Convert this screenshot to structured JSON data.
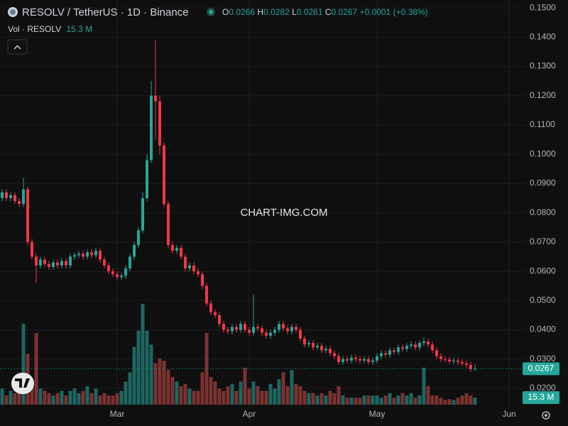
{
  "chart_data": {
    "type": "candlestick",
    "title": "RESOLV / TetherUS · 1D · Binance",
    "change_label": "+0.0001 (+0.38%)",
    "watermark": "CHART-IMG.COM",
    "ohlc_letters": [
      "O",
      "H",
      "L",
      "C"
    ],
    "up_color": "#26a69a",
    "down_color": "#f23645",
    "volume_up_color": "#1d6660",
    "volume_down_color": "#7a3230",
    "grid": true,
    "ylim": [
      0.0132,
      0.1527
    ],
    "yticks": [
      {
        "value": 0.15,
        "label": "0.1500"
      },
      {
        "value": 0.14,
        "label": "0.1400"
      },
      {
        "value": 0.13,
        "label": "0.1300"
      },
      {
        "value": 0.12,
        "label": "0.1200"
      },
      {
        "value": 0.11,
        "label": "0.1100"
      },
      {
        "value": 0.1,
        "label": "0.1000"
      },
      {
        "value": 0.09,
        "label": "0.0900"
      },
      {
        "value": 0.08,
        "label": "0.0800"
      },
      {
        "value": 0.07,
        "label": "0.0700"
      },
      {
        "value": 0.06,
        "label": "0.0600"
      },
      {
        "value": 0.05,
        "label": "0.0500"
      },
      {
        "value": 0.04,
        "label": "0.0400"
      },
      {
        "value": 0.03,
        "label": "0.0300"
      },
      {
        "value": 0.02,
        "label": "0.0200"
      }
    ],
    "categories": [
      null,
      null,
      null,
      null,
      null,
      null,
      null,
      null,
      null,
      null,
      null,
      null,
      null,
      null,
      null,
      null,
      null,
      null,
      null,
      null,
      null,
      null,
      null,
      null,
      null,
      null,
      null,
      "Mar",
      null,
      null,
      null,
      null,
      null,
      null,
      null,
      null,
      null,
      null,
      null,
      null,
      null,
      null,
      null,
      null,
      null,
      null,
      null,
      null,
      null,
      null,
      null,
      null,
      null,
      null,
      null,
      null,
      null,
      null,
      "Apr",
      null,
      null,
      null,
      null,
      null,
      null,
      null,
      null,
      null,
      null,
      null,
      null,
      null,
      null,
      null,
      null,
      null,
      null,
      null,
      null,
      null,
      null,
      null,
      null,
      null,
      null,
      null,
      null,
      null,
      "May",
      null,
      null,
      null,
      null,
      null,
      null,
      null,
      null,
      null,
      null,
      null,
      null,
      null,
      null,
      null,
      null,
      null,
      null,
      null,
      null,
      null,
      null,
      null,
      null,
      null,
      null,
      null,
      null,
      null,
      null,
      "Jun"
    ],
    "open": [
      0.085,
      0.087,
      0.085,
      0.086,
      0.084,
      0.083,
      0.088,
      0.07,
      0.065,
      0.062,
      0.064,
      0.0625,
      0.0615,
      0.063,
      0.062,
      0.0635,
      0.062,
      0.065,
      0.0655,
      0.066,
      0.065,
      0.0665,
      0.0655,
      0.067,
      0.064,
      0.062,
      0.06,
      0.059,
      0.058,
      0.0585,
      0.061,
      0.065,
      0.069,
      0.074,
      0.085,
      0.098,
      0.12,
      0.118,
      0.103,
      0.083,
      0.069,
      0.067,
      0.068,
      0.065,
      0.061,
      0.062,
      0.06,
      0.059,
      0.055,
      0.049,
      0.046,
      0.045,
      0.042,
      0.04,
      0.0395,
      0.041,
      0.04,
      0.042,
      0.04,
      0.039,
      0.041,
      0.0405,
      0.039,
      0.038,
      0.039,
      0.04,
      0.042,
      0.0405,
      0.0395,
      0.041,
      0.04,
      0.037,
      0.035,
      0.0355,
      0.034,
      0.0345,
      0.033,
      0.0335,
      0.032,
      0.031,
      0.029,
      0.03,
      0.0295,
      0.0305,
      0.03,
      0.0295,
      0.03,
      0.029,
      0.0295,
      0.031,
      0.032,
      0.0315,
      0.033,
      0.0325,
      0.034,
      0.0335,
      0.0345,
      0.035,
      0.034,
      0.0355,
      0.036,
      0.035,
      0.033,
      0.031,
      0.03,
      0.0298,
      0.0292,
      0.0295,
      0.029,
      0.0285,
      0.028,
      0.0266,
      null,
      null,
      null,
      null,
      null,
      null,
      null,
      null
    ],
    "high": [
      0.088,
      0.088,
      0.087,
      0.087,
      0.085,
      0.092,
      0.089,
      0.071,
      0.066,
      0.065,
      0.065,
      0.0635,
      0.064,
      0.064,
      0.0645,
      0.0645,
      0.066,
      0.0665,
      0.067,
      0.067,
      0.0675,
      0.0675,
      0.068,
      0.068,
      0.065,
      0.063,
      0.061,
      0.06,
      0.0595,
      0.062,
      0.066,
      0.07,
      0.075,
      0.087,
      0.1,
      0.125,
      0.139,
      0.12,
      0.104,
      0.084,
      0.07,
      0.069,
      0.069,
      0.066,
      0.063,
      0.063,
      0.061,
      0.06,
      0.056,
      0.05,
      0.047,
      0.046,
      0.043,
      0.041,
      0.042,
      0.042,
      0.043,
      0.043,
      0.041,
      0.052,
      0.042,
      0.0415,
      0.04,
      0.04,
      0.041,
      0.043,
      0.043,
      0.0415,
      0.042,
      0.042,
      0.041,
      0.038,
      0.0365,
      0.0365,
      0.0355,
      0.0355,
      0.0345,
      0.0345,
      0.033,
      0.032,
      0.031,
      0.031,
      0.0315,
      0.0315,
      0.031,
      0.031,
      0.031,
      0.0305,
      0.032,
      0.033,
      0.033,
      0.034,
      0.034,
      0.035,
      0.035,
      0.0355,
      0.036,
      0.036,
      0.0365,
      0.0375,
      0.037,
      0.036,
      0.034,
      0.032,
      0.031,
      0.0308,
      0.0305,
      0.0305,
      0.03,
      0.0295,
      0.029,
      0.0282,
      null,
      null,
      null,
      null,
      null,
      null,
      null,
      null
    ],
    "low": [
      0.084,
      0.084,
      0.084,
      0.083,
      0.082,
      0.082,
      0.069,
      0.064,
      0.056,
      0.061,
      0.0615,
      0.0605,
      0.0605,
      0.061,
      0.061,
      0.061,
      0.061,
      0.064,
      0.0645,
      0.064,
      0.064,
      0.0645,
      0.0645,
      0.063,
      0.061,
      0.059,
      0.058,
      0.057,
      0.057,
      0.0575,
      0.06,
      0.064,
      0.068,
      0.073,
      0.084,
      0.097,
      0.105,
      0.1,
      0.082,
      0.068,
      0.066,
      0.066,
      0.064,
      0.06,
      0.06,
      0.059,
      0.058,
      0.054,
      0.048,
      0.045,
      0.044,
      0.041,
      0.039,
      0.0385,
      0.0385,
      0.039,
      0.039,
      0.039,
      0.038,
      0.038,
      0.0395,
      0.038,
      0.037,
      0.037,
      0.038,
      0.039,
      0.0395,
      0.0385,
      0.0385,
      0.039,
      0.036,
      0.034,
      0.034,
      0.033,
      0.033,
      0.032,
      0.032,
      0.031,
      0.03,
      0.028,
      0.028,
      0.0285,
      0.0285,
      0.029,
      0.0285,
      0.0285,
      0.028,
      0.028,
      0.0285,
      0.03,
      0.0305,
      0.0305,
      0.0315,
      0.0315,
      0.0325,
      0.0325,
      0.0335,
      0.033,
      0.033,
      0.0345,
      0.034,
      0.032,
      0.03,
      0.029,
      0.0288,
      0.0282,
      0.0282,
      0.028,
      0.0275,
      0.027,
      0.0256,
      0.0261,
      null,
      null,
      null,
      null,
      null,
      null,
      null,
      null
    ],
    "close": [
      0.087,
      0.085,
      0.086,
      0.084,
      0.083,
      0.088,
      0.07,
      0.065,
      0.062,
      0.064,
      0.0625,
      0.0615,
      0.063,
      0.062,
      0.0635,
      0.062,
      0.065,
      0.0655,
      0.066,
      0.065,
      0.0665,
      0.0655,
      0.067,
      0.064,
      0.062,
      0.06,
      0.059,
      0.058,
      0.0585,
      0.061,
      0.065,
      0.069,
      0.074,
      0.085,
      0.098,
      0.12,
      0.118,
      0.103,
      0.083,
      0.069,
      0.067,
      0.068,
      0.065,
      0.061,
      0.062,
      0.06,
      0.059,
      0.055,
      0.049,
      0.046,
      0.045,
      0.042,
      0.04,
      0.0395,
      0.041,
      0.04,
      0.042,
      0.04,
      0.039,
      0.041,
      0.0405,
      0.039,
      0.038,
      0.039,
      0.04,
      0.042,
      0.0405,
      0.0395,
      0.041,
      0.04,
      0.037,
      0.035,
      0.0355,
      0.034,
      0.0345,
      0.033,
      0.0335,
      0.032,
      0.031,
      0.029,
      0.03,
      0.0295,
      0.0305,
      0.03,
      0.0295,
      0.03,
      0.029,
      0.0295,
      0.031,
      0.032,
      0.0315,
      0.033,
      0.0325,
      0.034,
      0.0335,
      0.0345,
      0.035,
      0.034,
      0.0355,
      0.036,
      0.035,
      0.033,
      0.031,
      0.03,
      0.0298,
      0.0292,
      0.0295,
      0.029,
      0.0285,
      0.028,
      0.0266,
      0.0267,
      null,
      null,
      null,
      null,
      null,
      null,
      null,
      null
    ],
    "volume": {
      "name": "Vol · RESOLV",
      "last_label": "15.3 M",
      "values": [
        35,
        20,
        30,
        25,
        40,
        175,
        110,
        50,
        155,
        35,
        30,
        25,
        20,
        25,
        30,
        20,
        30,
        35,
        25,
        30,
        40,
        25,
        35,
        20,
        25,
        20,
        20,
        25,
        30,
        50,
        70,
        125,
        160,
        218,
        160,
        130,
        90,
        100,
        95,
        75,
        60,
        50,
        40,
        45,
        35,
        30,
        30,
        70,
        155,
        60,
        50,
        35,
        30,
        40,
        45,
        30,
        50,
        80,
        35,
        50,
        40,
        30,
        30,
        45,
        35,
        55,
        70,
        40,
        75,
        45,
        40,
        30,
        25,
        25,
        20,
        25,
        20,
        30,
        25,
        40,
        20,
        15,
        15,
        15,
        15,
        20,
        20,
        20,
        20,
        15,
        20,
        25,
        15,
        20,
        25,
        20,
        25,
        15,
        20,
        80,
        40,
        20,
        20,
        15,
        10,
        12,
        10,
        15,
        20,
        25,
        20,
        15.3,
        null,
        null,
        null,
        null,
        null,
        null,
        null,
        null
      ]
    }
  }
}
